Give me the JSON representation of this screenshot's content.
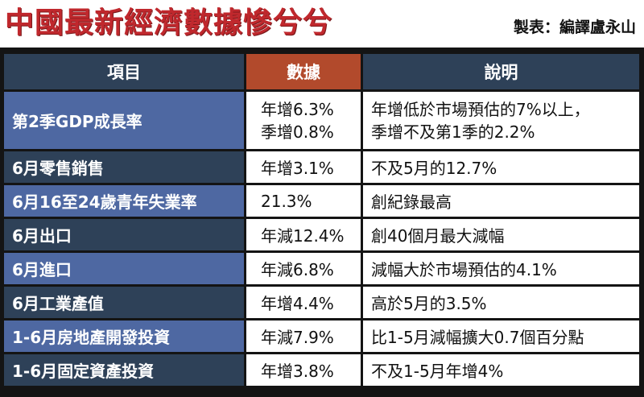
{
  "title": "中國最新經濟數據慘兮兮",
  "credit": "製表：編譯盧永山",
  "table": {
    "headers": {
      "item": "項目",
      "data": "數據",
      "desc": "說明"
    },
    "rows": [
      {
        "item": "第2季GDP成長率",
        "data": "年增6.3%",
        "data2": "季增0.8%",
        "desc": "年增低於市場預估的7%以上，",
        "desc2": "季增不及第1季的2.2%"
      },
      {
        "item": "6月零售銷售",
        "data": "年增3.1%",
        "desc": "不及5月的12.7%"
      },
      {
        "item": "6月16至24歲青年失業率",
        "data": "21.3%",
        "desc": "創紀錄最高"
      },
      {
        "item": "6月出口",
        "data": "年減12.4%",
        "desc": "創40個月最大減幅"
      },
      {
        "item": "6月進口",
        "data": "年減6.8%",
        "desc": "減幅大於市場預估的4.1%"
      },
      {
        "item": "6月工業產值",
        "data": "年增4.4%",
        "desc": "高於5月的3.5%"
      },
      {
        "item": "1-6月房地產開發投資",
        "data": "年減7.9%",
        "desc": "比1-5月減幅擴大0.7個百分點"
      },
      {
        "item": "1-6月固定資產投資",
        "data": "年增3.8%",
        "desc": "不及1-5月年增4%"
      }
    ]
  }
}
